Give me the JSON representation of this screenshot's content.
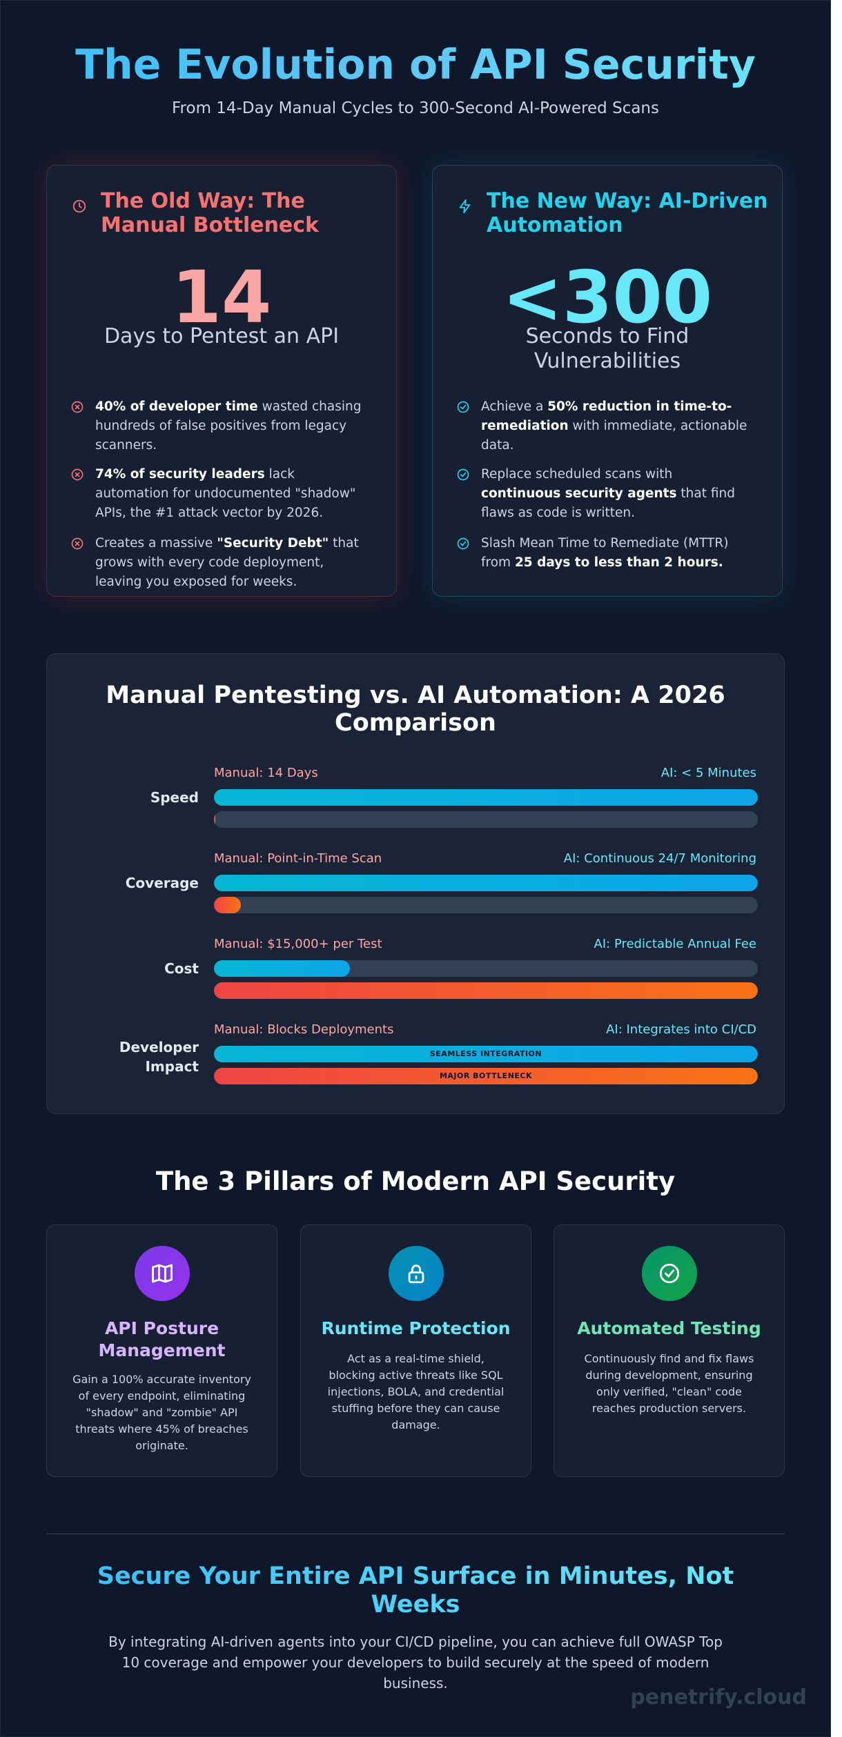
{
  "header": {
    "title": "The Evolution of API Security",
    "subtitle": "From 14-Day Manual Cycles to 300-Second AI-Powered Scans"
  },
  "old_way": {
    "title": "The Old Way: The Manual Bottleneck",
    "icon": "clock-icon",
    "stat": "14",
    "stat_label": "Days to Pentest an API",
    "bullets": [
      {
        "bold": "40% of developer time",
        "text": " wasted chasing hundreds of false positives from legacy scanners."
      },
      {
        "bold": "74% of security leaders",
        "text": " lack automation for undocumented \"shadow\" APIs, the #1 attack vector by 2026."
      },
      {
        "pre": "Creates a massive ",
        "bold": "\"Security Debt\"",
        "text": " that grows with every code deployment, leaving you exposed for weeks."
      }
    ],
    "color": "#f87171"
  },
  "new_way": {
    "title": "The New Way: AI-Driven Automation",
    "icon": "lightning-icon",
    "stat": "<300",
    "stat_label": "Seconds to Find Vulnerabilities",
    "bullets": [
      {
        "pre": "Achieve a ",
        "bold": "50% reduction in time-to-remediation",
        "text": " with immediate, actionable data."
      },
      {
        "pre": "Replace scheduled scans with ",
        "bold": "continuous security agents",
        "text": " that find flaws as code is written."
      },
      {
        "pre": "Slash Mean Time to Remediate (MTTR) from ",
        "bold": "25 days to less than 2 hours."
      }
    ],
    "color": "#22d3ee"
  },
  "comparison": {
    "title": "Manual Pentesting vs. AI Automation: A 2026 Comparison",
    "rows": [
      {
        "label": "Speed",
        "manual_label": "Manual: 14 Days",
        "ai_label": "AI: < 5 Minutes",
        "ai_fill": 1.0,
        "manual_fill": 0.002,
        "ai_bar_text": "",
        "manual_bar_text": ""
      },
      {
        "label": "Coverage",
        "manual_label": "Manual: Point-in-Time Scan",
        "ai_label": "AI: Continuous 24/7 Monitoring",
        "ai_fill": 1.0,
        "manual_fill": 0.05,
        "ai_bar_text": "",
        "manual_bar_text": ""
      },
      {
        "label": "Cost",
        "manual_label": "Manual: $15,000+ per Test",
        "ai_label": "AI: Predictable Annual Fee",
        "ai_fill": 0.25,
        "manual_fill": 1.0,
        "ai_bar_text": "",
        "manual_bar_text": ""
      },
      {
        "label": "Developer Impact",
        "manual_label": "Manual: Blocks Deployments",
        "ai_label": "AI: Integrates into CI/CD",
        "ai_fill": 1.0,
        "manual_fill": 1.0,
        "ai_bar_text": "SEAMLESS INTEGRATION",
        "manual_bar_text": "MAJOR BOTTLENECK"
      }
    ]
  },
  "pillars": {
    "title": "The 3 Pillars of Modern API Security",
    "items": [
      {
        "title": "API Posture Management",
        "icon": "map-icon",
        "title_color": "#d8b4fe",
        "description": "Gain a 100% accurate inventory of every endpoint, eliminating \"shadow\" and \"zombie\" API threats where 45% of breaches originate."
      },
      {
        "title": "Runtime Protection",
        "icon": "lock-icon",
        "title_color": "#67e8f9",
        "description": "Act as a real-time shield, blocking active threats like SQL injections, BOLA, and credential stuffing before they can cause damage."
      },
      {
        "title": "Automated Testing",
        "icon": "check-circle-icon",
        "title_color": "#6ee7b7",
        "description": "Continuously find and fix flaws during development, ensuring only verified, \"clean\" code reaches production servers."
      }
    ]
  },
  "cta": {
    "title": "Secure Your Entire API Surface in Minutes, Not Weeks",
    "text": "By integrating AI-driven agents into your CI/CD pipeline, you can achieve full OWASP Top 10 coverage and empower your developers to build securely at the speed of modern business."
  },
  "brand": "penetrify.cloud"
}
